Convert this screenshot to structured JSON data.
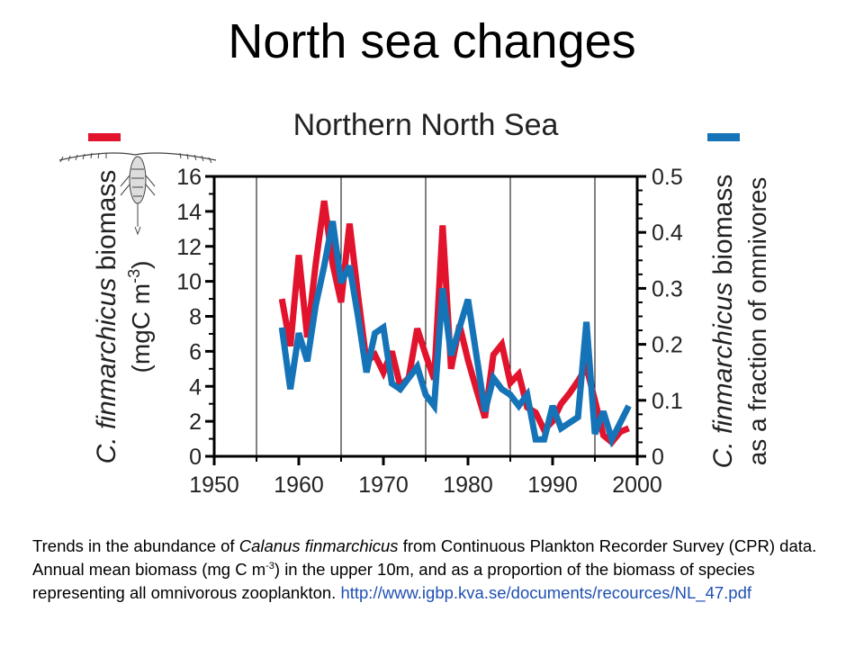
{
  "slide": {
    "title": "North sea changes"
  },
  "chart_data": {
    "type": "line",
    "title": "Northern North Sea",
    "xlabel": "",
    "ylabel_left": {
      "italic": "C. finmarchicus",
      "text": " biomass",
      "unit_pre": "(mgC m",
      "unit_sup": "-3",
      "unit_post": ")"
    },
    "ylabel_right": {
      "italic": "C. finmarchicus",
      "text": " biomass",
      "line2": "as a fraction of omnivores"
    },
    "xlim": [
      1950,
      2000
    ],
    "ylim_left": [
      0,
      16
    ],
    "ylim_right": [
      0,
      0.5
    ],
    "xticks": [
      "1950",
      "1960",
      "1970",
      "1980",
      "1990",
      "2000"
    ],
    "xtick_values": [
      1950,
      1960,
      1970,
      1980,
      1990,
      2000
    ],
    "yticks_left": [
      "0",
      "2",
      "4",
      "6",
      "8",
      "10",
      "12",
      "14",
      "16"
    ],
    "ytick_values_left": [
      0,
      2,
      4,
      6,
      8,
      10,
      12,
      14,
      16
    ],
    "yticks_right": [
      "0",
      "0.1",
      "0.2",
      "0.3",
      "0.4",
      "0.5"
    ],
    "ytick_values_right": [
      0,
      0.1,
      0.2,
      0.3,
      0.4,
      0.5
    ],
    "vertical_lines": [
      1955,
      1965,
      1975,
      1985,
      1995
    ],
    "series": [
      {
        "axis": "left",
        "color": "#e2132c",
        "x": [
          1958,
          1959,
          1960,
          1961,
          1962,
          1963,
          1964,
          1965,
          1966,
          1967,
          1968,
          1969,
          1970,
          1971,
          1972,
          1973,
          1974,
          1975,
          1976,
          1977,
          1978,
          1979,
          1980,
          1981,
          1982,
          1983,
          1984,
          1985,
          1986,
          1987,
          1988,
          1989,
          1990,
          1991,
          1992,
          1993,
          1994,
          1995,
          1996,
          1997,
          1998,
          1999
        ],
        "values": [
          9.0,
          6.3,
          11.5,
          6.8,
          11.0,
          14.6,
          11.0,
          8.8,
          13.3,
          9.2,
          5.4,
          5.8,
          4.8,
          6.0,
          4.0,
          4.5,
          7.3,
          5.8,
          4.4,
          13.2,
          5.0,
          7.5,
          5.5,
          3.8,
          2.2,
          5.8,
          6.4,
          4.2,
          4.7,
          2.8,
          2.5,
          1.5,
          2.0,
          3.0,
          3.6,
          4.3,
          5.1,
          3.2,
          1.2,
          0.8,
          1.4,
          1.6
        ]
      },
      {
        "axis": "right",
        "color": "#1573b8",
        "x": [
          1958,
          1959,
          1960,
          1961,
          1962,
          1963,
          1964,
          1965,
          1966,
          1967,
          1968,
          1969,
          1970,
          1971,
          1972,
          1973,
          1974,
          1975,
          1976,
          1977,
          1978,
          1979,
          1980,
          1981,
          1982,
          1983,
          1984,
          1985,
          1986,
          1987,
          1988,
          1989,
          1990,
          1991,
          1992,
          1993,
          1994,
          1995,
          1996,
          1997,
          1998,
          1999
        ],
        "values": [
          0.23,
          0.12,
          0.22,
          0.17,
          0.27,
          0.34,
          0.42,
          0.31,
          0.34,
          0.25,
          0.15,
          0.22,
          0.23,
          0.13,
          0.12,
          0.14,
          0.16,
          0.11,
          0.09,
          0.3,
          0.18,
          0.23,
          0.28,
          0.18,
          0.08,
          0.14,
          0.12,
          0.11,
          0.09,
          0.11,
          0.03,
          0.03,
          0.09,
          0.05,
          0.06,
          0.07,
          0.24,
          0.04,
          0.08,
          0.03,
          0.06,
          0.09
        ]
      }
    ]
  },
  "caption": {
    "p1": "Trends in the abundance of ",
    "species": "Calanus finmarchicus",
    "p2": " from Continuous Plankton Recorder Survey (CPR) data. Annual mean biomass (mg C m",
    "sup": "-3",
    "p3": ") in the upper 10m, and as a proportion of the biomass of species representing all omnivorous zooplankton.  ",
    "link": "http://www.igbp.kva.se/documents/recources/NL_47.pdf"
  }
}
